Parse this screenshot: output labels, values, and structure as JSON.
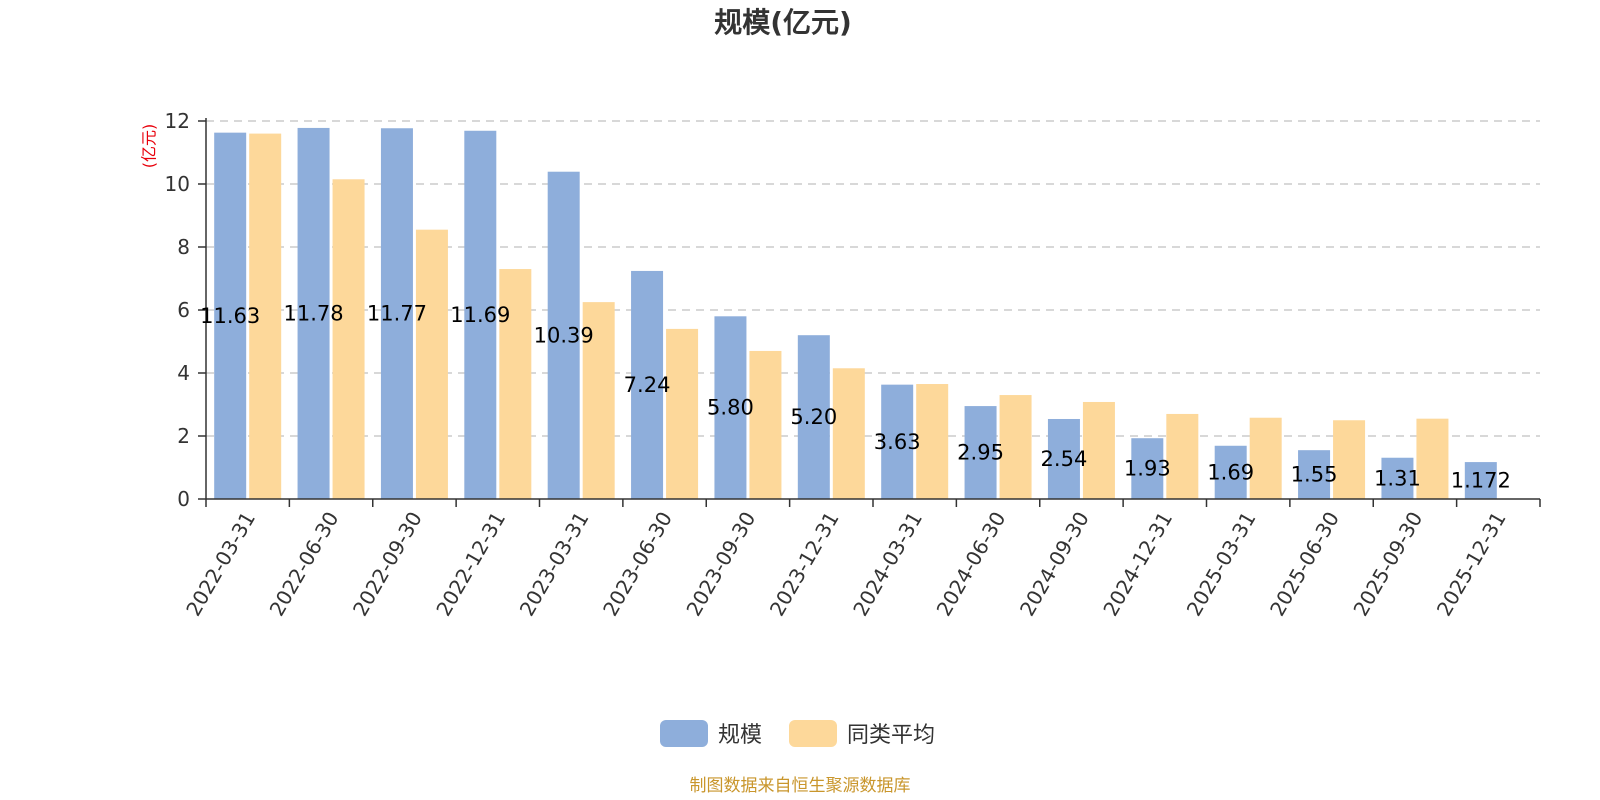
{
  "chart_data": {
    "type": "bar",
    "title": "规模(亿元)",
    "ylabel": "(亿元)",
    "xlabel": "",
    "ylim": [
      0,
      12
    ],
    "yticks": [
      0,
      2,
      4,
      6,
      8,
      10,
      12
    ],
    "grid": true,
    "legend_position": "bottom",
    "categories": [
      "2022-03-31",
      "2022-06-30",
      "2022-09-30",
      "2022-12-31",
      "2023-03-31",
      "2023-06-30",
      "2023-09-30",
      "2023-12-31",
      "2024-03-31",
      "2024-06-30",
      "2024-09-30",
      "2024-12-31",
      "2025-03-31",
      "2025-06-30",
      "2025-09-30",
      "2025-12-31"
    ],
    "series": [
      {
        "name": "规模",
        "color": "#8eaedb",
        "values": [
          11.63,
          11.78,
          11.77,
          11.69,
          10.39,
          7.24,
          5.8,
          5.2,
          3.63,
          2.95,
          2.54,
          1.93,
          1.69,
          1.55,
          1.31,
          1.172
        ],
        "labels": [
          "11.63",
          "11.78",
          "11.77",
          "11.69",
          "10.39",
          "7.24",
          "5.80",
          "5.20",
          "3.63",
          "2.95",
          "2.54",
          "1.93",
          "1.69",
          "1.55",
          "1.31",
          "1.172"
        ]
      },
      {
        "name": "同类平均",
        "color": "#fdd89a",
        "values": [
          11.6,
          10.15,
          8.55,
          7.3,
          6.25,
          5.4,
          4.7,
          4.15,
          3.65,
          3.3,
          3.08,
          2.7,
          2.58,
          2.5,
          2.55,
          null
        ]
      }
    ],
    "source": "制图数据来自恒生聚源数据库"
  },
  "colors": {
    "title": "#333333",
    "axis": "#333333",
    "grid": "#cccccc",
    "unit": "#e8000b",
    "source": "#c9962c"
  }
}
